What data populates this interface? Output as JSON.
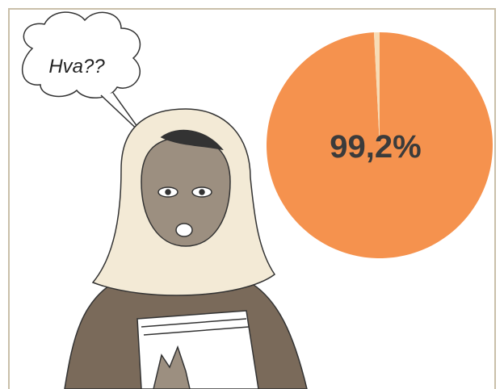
{
  "chart_data": {
    "type": "pie",
    "annotation": "Hva??",
    "values": [
      99.2,
      0.8
    ],
    "value_labels": [
      "99,2%",
      null
    ],
    "colors": [
      "#f5924e",
      "#f7dcb6"
    ]
  }
}
